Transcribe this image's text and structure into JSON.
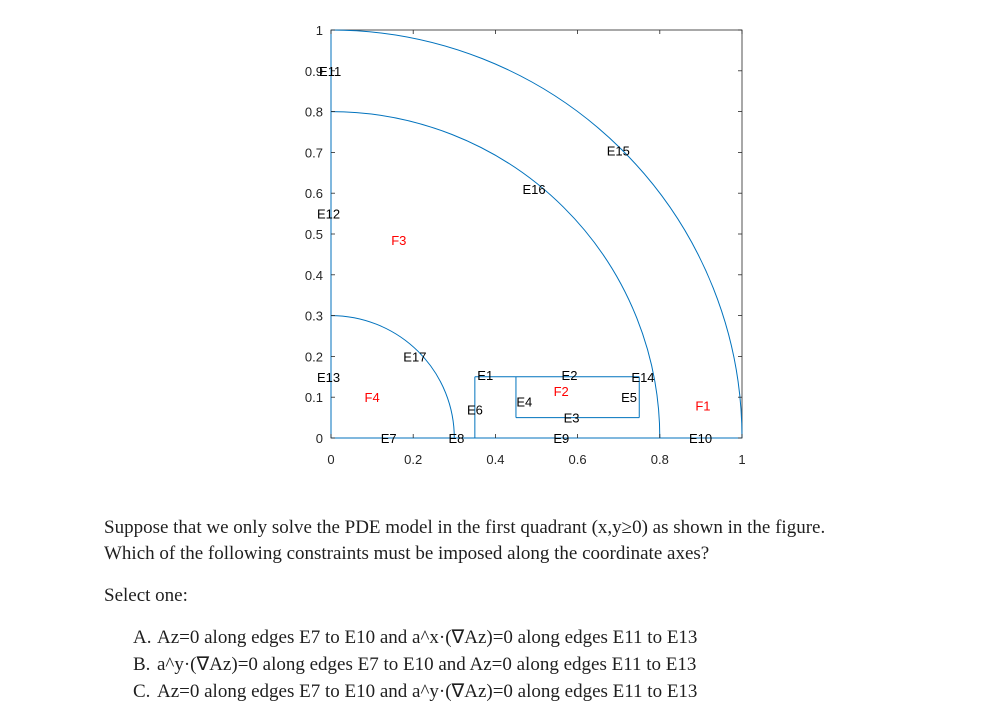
{
  "figure": {
    "x_ticks": [
      "0",
      "0.2",
      "0.4",
      "0.6",
      "0.8",
      "1"
    ],
    "y_ticks": [
      "0",
      "0.1",
      "0.2",
      "0.3",
      "0.4",
      "0.5",
      "0.6",
      "0.7",
      "0.8",
      "0.9",
      "1"
    ],
    "xlim": [
      0,
      1
    ],
    "ylim": [
      0,
      1
    ],
    "line_color": "#0072BD",
    "face_label_color": "#ff0000",
    "edge_labels": [
      {
        "name": "E1",
        "x": 0.39,
        "y": 0.155
      },
      {
        "name": "E2",
        "x": 0.595,
        "y": 0.155
      },
      {
        "name": "E3",
        "x": 0.6,
        "y": 0.05
      },
      {
        "name": "E4",
        "x": 0.485,
        "y": 0.09
      },
      {
        "name": "E5",
        "x": 0.74,
        "y": 0.1
      },
      {
        "name": "E6",
        "x": 0.365,
        "y": 0.07
      },
      {
        "name": "E7",
        "x": 0.155,
        "y": 0.0
      },
      {
        "name": "E8",
        "x": 0.32,
        "y": 0.0
      },
      {
        "name": "E9",
        "x": 0.575,
        "y": 0.0
      },
      {
        "name": "E10",
        "x": 0.905,
        "y": 0.0
      },
      {
        "name": "E11",
        "x": 0.005,
        "y": 0.9
      },
      {
        "name": "E12",
        "x": 0.0,
        "y": 0.55
      },
      {
        "name": "E13",
        "x": 0.0,
        "y": 0.15
      },
      {
        "name": "E14",
        "x": 0.765,
        "y": 0.15
      },
      {
        "name": "E15",
        "x": 0.705,
        "y": 0.705
      },
      {
        "name": "E16",
        "x": 0.5,
        "y": 0.61
      },
      {
        "name": "E17",
        "x": 0.21,
        "y": 0.2
      }
    ],
    "face_labels": [
      {
        "name": "F1",
        "x": 0.905,
        "y": 0.08
      },
      {
        "name": "F2",
        "x": 0.56,
        "y": 0.115
      },
      {
        "name": "F3",
        "x": 0.165,
        "y": 0.485
      },
      {
        "name": "F4",
        "x": 0.1,
        "y": 0.1
      }
    ]
  },
  "question": {
    "line1": "Suppose that we only solve the PDE model in the first quadrant (x,y≥0) as shown in the figure.",
    "line2": "Which of the following constraints must be imposed along the coordinate axes?"
  },
  "select_label": "Select one:",
  "options": [
    {
      "letter": "A.",
      "text": "Az=0 along edges E7 to E10 and a^x·(∇Az)=0 along edges E11 to E13"
    },
    {
      "letter": "B.",
      "text": "a^y·(∇Az)=0 along edges E7 to E10 and Az=0 along edges E11 to E13"
    },
    {
      "letter": "C.",
      "text": "Az=0 along edges E7 to E10 and a^y·(∇Az)=0 along edges E11 to E13"
    }
  ]
}
